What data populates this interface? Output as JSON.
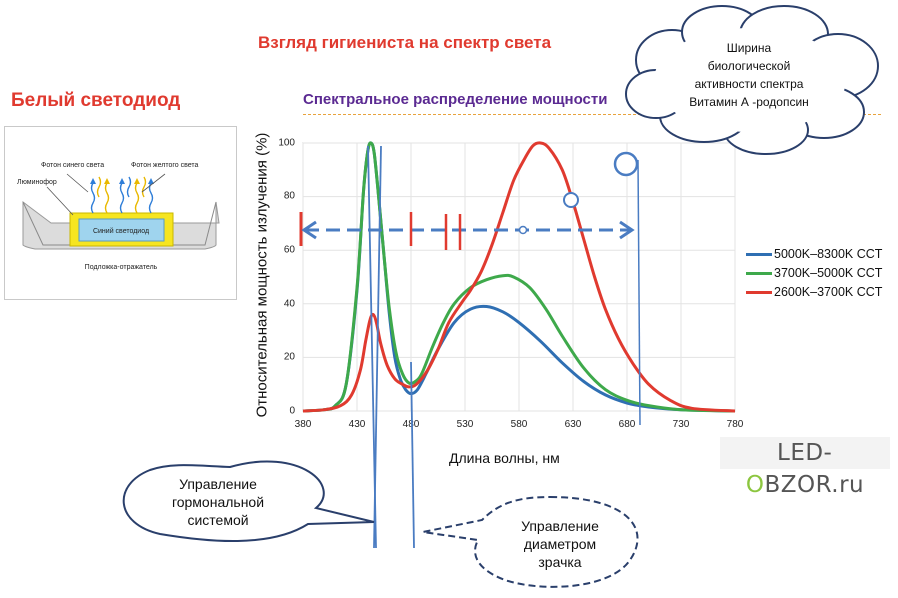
{
  "page": {
    "main_title": "Взгляд гигиениста на спектр света",
    "led_title": "Белый светодиод",
    "chart_title": "Спектральное распределение мощности",
    "cloud_text": [
      "Ширина",
      "биологической",
      "активности спектра",
      "Витамин А -родопсин"
    ],
    "callout_hormonal": [
      "Управление",
      "гормональной",
      "системой"
    ],
    "callout_pupil": [
      "Управление",
      "диаметром",
      "зрачка"
    ],
    "logo": {
      "left": "LED-",
      "highlight": "O",
      "right": "BZOR.ru"
    }
  },
  "led_diagram": {
    "label_blue_photon": "Фотон синего света",
    "label_yellow_photon": "Фотон желтого света",
    "label_phosphor": "Люминофор",
    "label_blue_led": "Синий светодиод",
    "label_substrate": "Подложка-отражатель",
    "colors": {
      "phosphor": "#f6e520",
      "led": "#9fd4ee",
      "blue_ray": "#2f7ed8",
      "yellow_ray": "#e9b800"
    }
  },
  "chart_data": {
    "type": "line",
    "ylabel": "Относительная мощность излучения (%)",
    "xlabel": "Длина волны, нм",
    "xlim": [
      380,
      780
    ],
    "ylim": [
      0,
      100
    ],
    "x_ticks": [
      "380",
      "430",
      "480",
      "530",
      "580",
      "630",
      "680",
      "730",
      "780"
    ],
    "y_ticks": [
      "0",
      "20",
      "40",
      "60",
      "80",
      "100"
    ],
    "legend_position": "right",
    "series": [
      {
        "name": "5000K–8300K CCT",
        "color": "#2f6fb3",
        "points": [
          [
            380,
            0
          ],
          [
            400,
            0.5
          ],
          [
            410,
            2
          ],
          [
            420,
            10
          ],
          [
            430,
            45
          ],
          [
            436,
            82
          ],
          [
            440,
            97
          ],
          [
            443,
            100
          ],
          [
            446,
            96
          ],
          [
            450,
            80
          ],
          [
            455,
            58
          ],
          [
            460,
            36
          ],
          [
            465,
            20
          ],
          [
            470,
            12
          ],
          [
            475,
            8
          ],
          [
            480,
            6.5
          ],
          [
            486,
            8
          ],
          [
            494,
            14
          ],
          [
            505,
            23
          ],
          [
            520,
            33
          ],
          [
            535,
            38
          ],
          [
            550,
            39
          ],
          [
            565,
            37
          ],
          [
            580,
            33
          ],
          [
            600,
            26
          ],
          [
            620,
            18
          ],
          [
            640,
            11
          ],
          [
            660,
            6
          ],
          [
            680,
            3
          ],
          [
            700,
            1.5
          ],
          [
            730,
            0.5
          ],
          [
            780,
            0
          ]
        ]
      },
      {
        "name": "3700K–5000K CCT",
        "color": "#3ea94b",
        "points": [
          [
            380,
            0
          ],
          [
            400,
            0.5
          ],
          [
            410,
            2
          ],
          [
            420,
            10
          ],
          [
            430,
            46
          ],
          [
            436,
            82
          ],
          [
            440,
            97
          ],
          [
            443,
            100
          ],
          [
            446,
            96
          ],
          [
            450,
            80
          ],
          [
            455,
            58
          ],
          [
            460,
            38
          ],
          [
            466,
            22
          ],
          [
            472,
            14
          ],
          [
            478,
            10.5
          ],
          [
            484,
            11
          ],
          [
            490,
            14
          ],
          [
            500,
            24
          ],
          [
            510,
            33
          ],
          [
            520,
            40
          ],
          [
            535,
            46
          ],
          [
            550,
            49
          ],
          [
            565,
            50.5
          ],
          [
            575,
            50
          ],
          [
            590,
            46
          ],
          [
            605,
            38
          ],
          [
            620,
            28
          ],
          [
            640,
            16
          ],
          [
            660,
            8
          ],
          [
            680,
            4
          ],
          [
            700,
            2
          ],
          [
            730,
            0.5
          ],
          [
            780,
            0
          ]
        ]
      },
      {
        "name": "2600K–3700K CCT",
        "color": "#e03a2f",
        "points": [
          [
            380,
            0
          ],
          [
            400,
            0.5
          ],
          [
            415,
            2
          ],
          [
            425,
            6
          ],
          [
            433,
            15
          ],
          [
            438,
            26
          ],
          [
            442,
            34
          ],
          [
            445,
            36
          ],
          [
            448,
            33
          ],
          [
            452,
            25
          ],
          [
            458,
            17
          ],
          [
            465,
            12
          ],
          [
            472,
            10
          ],
          [
            478,
            9
          ],
          [
            485,
            10
          ],
          [
            495,
            15
          ],
          [
            505,
            23
          ],
          [
            515,
            33
          ],
          [
            528,
            41
          ],
          [
            535,
            45
          ],
          [
            545,
            52
          ],
          [
            555,
            62
          ],
          [
            565,
            74
          ],
          [
            575,
            86
          ],
          [
            585,
            94
          ],
          [
            593,
            99
          ],
          [
            600,
            100
          ],
          [
            608,
            98
          ],
          [
            620,
            90
          ],
          [
            630,
            78
          ],
          [
            640,
            64
          ],
          [
            650,
            50
          ],
          [
            660,
            38
          ],
          [
            672,
            27
          ],
          [
            685,
            18
          ],
          [
            700,
            10
          ],
          [
            720,
            4
          ],
          [
            740,
            1
          ],
          [
            780,
            0
          ]
        ]
      }
    ]
  }
}
